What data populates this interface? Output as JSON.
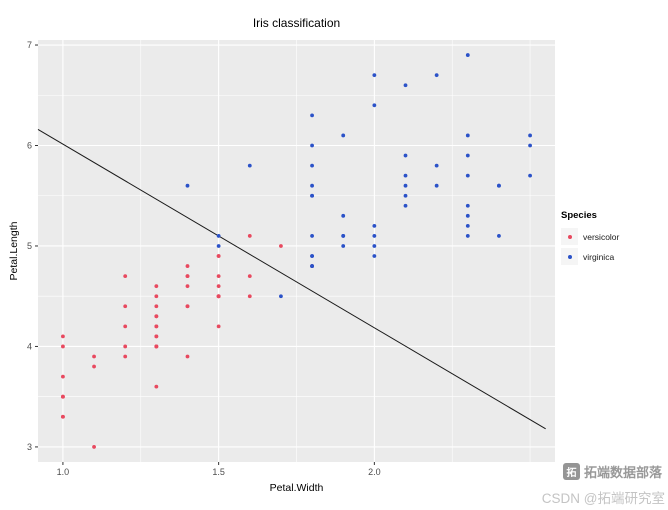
{
  "legend": {
    "title": "Species"
  },
  "watermark": {
    "logo_glyph": "拓",
    "line1": "拓端数据部落",
    "line2": "CSDN @拓端研究室"
  },
  "chart_data": {
    "type": "scatter",
    "title": "Iris classification",
    "xlabel": "Petal.Width",
    "ylabel": "Petal.Length",
    "xlim": [
      0.92,
      2.58
    ],
    "ylim": [
      2.85,
      7.05
    ],
    "panel_bg": "#EBEBEB",
    "grid_color": "#FFFFFF",
    "tick_color": "#333333",
    "x_ticks": [
      {
        "value": 1.0,
        "label": "1.0"
      },
      {
        "value": 1.5,
        "label": "1.5"
      },
      {
        "value": 2.0,
        "label": "2.0"
      }
    ],
    "y_ticks": [
      {
        "value": 3,
        "label": "3"
      },
      {
        "value": 4,
        "label": "4"
      },
      {
        "value": 5,
        "label": "5"
      },
      {
        "value": 6,
        "label": "6"
      },
      {
        "value": 7,
        "label": "7"
      }
    ],
    "x_minor": [
      1.25,
      1.75,
      2.25,
      2.5
    ],
    "y_minor": [
      3.5,
      4.5,
      5.5,
      6.5
    ],
    "decision_boundary": {
      "x1": 0.92,
      "y1": 6.16,
      "x2": 2.55,
      "y2": 3.18,
      "color": "#1A1A1A"
    },
    "series": [
      {
        "name": "versicolor",
        "color": "#E8495F",
        "points": [
          [
            1.4,
            4.7
          ],
          [
            1.5,
            4.5
          ],
          [
            1.5,
            4.9
          ],
          [
            1.3,
            4.0
          ],
          [
            1.5,
            4.6
          ],
          [
            1.3,
            4.5
          ],
          [
            1.6,
            4.7
          ],
          [
            1.0,
            3.3
          ],
          [
            1.3,
            4.6
          ],
          [
            1.4,
            3.9
          ],
          [
            1.0,
            3.5
          ],
          [
            1.5,
            4.2
          ],
          [
            1.0,
            4.0
          ],
          [
            1.4,
            4.7
          ],
          [
            1.3,
            3.6
          ],
          [
            1.4,
            4.4
          ],
          [
            1.5,
            4.5
          ],
          [
            1.0,
            4.1
          ],
          [
            1.5,
            4.5
          ],
          [
            1.1,
            3.9
          ],
          [
            1.8,
            4.8
          ],
          [
            1.3,
            4.0
          ],
          [
            1.5,
            4.9
          ],
          [
            1.2,
            4.7
          ],
          [
            1.3,
            4.3
          ],
          [
            1.4,
            4.4
          ],
          [
            1.4,
            4.8
          ],
          [
            1.7,
            5.0
          ],
          [
            1.5,
            4.5
          ],
          [
            1.0,
            3.5
          ],
          [
            1.1,
            3.8
          ],
          [
            1.0,
            3.7
          ],
          [
            1.2,
            3.9
          ],
          [
            1.6,
            5.1
          ],
          [
            1.5,
            4.5
          ],
          [
            1.6,
            4.5
          ],
          [
            1.5,
            4.7
          ],
          [
            1.3,
            4.4
          ],
          [
            1.3,
            4.1
          ],
          [
            1.3,
            4.0
          ],
          [
            1.2,
            4.4
          ],
          [
            1.4,
            4.6
          ],
          [
            1.2,
            4.0
          ],
          [
            1.0,
            3.3
          ],
          [
            1.3,
            4.2
          ],
          [
            1.2,
            4.2
          ],
          [
            1.3,
            4.2
          ],
          [
            1.3,
            4.3
          ],
          [
            1.1,
            3.0
          ],
          [
            1.3,
            4.1
          ]
        ]
      },
      {
        "name": "virginica",
        "color": "#2B52C8",
        "points": [
          [
            2.5,
            6.0
          ],
          [
            1.9,
            5.1
          ],
          [
            2.1,
            5.9
          ],
          [
            1.8,
            5.6
          ],
          [
            2.2,
            5.8
          ],
          [
            2.1,
            6.6
          ],
          [
            1.7,
            4.5
          ],
          [
            1.8,
            6.3
          ],
          [
            1.8,
            5.8
          ],
          [
            2.5,
            6.1
          ],
          [
            2.0,
            5.1
          ],
          [
            1.9,
            5.3
          ],
          [
            2.1,
            5.5
          ],
          [
            2.0,
            5.0
          ],
          [
            2.4,
            5.1
          ],
          [
            2.3,
            5.3
          ],
          [
            1.8,
            5.5
          ],
          [
            2.2,
            6.7
          ],
          [
            2.3,
            6.9
          ],
          [
            1.5,
            5.0
          ],
          [
            2.3,
            5.7
          ],
          [
            2.0,
            4.9
          ],
          [
            2.0,
            6.7
          ],
          [
            1.8,
            4.9
          ],
          [
            2.1,
            5.7
          ],
          [
            1.8,
            6.0
          ],
          [
            1.8,
            4.8
          ],
          [
            1.8,
            4.9
          ],
          [
            2.1,
            5.6
          ],
          [
            1.6,
            5.8
          ],
          [
            1.9,
            6.1
          ],
          [
            2.0,
            6.4
          ],
          [
            2.2,
            5.6
          ],
          [
            1.5,
            5.1
          ],
          [
            1.4,
            5.6
          ],
          [
            2.3,
            6.1
          ],
          [
            2.4,
            5.6
          ],
          [
            1.8,
            5.5
          ],
          [
            1.8,
            4.8
          ],
          [
            2.1,
            5.4
          ],
          [
            2.4,
            5.6
          ],
          [
            2.3,
            5.1
          ],
          [
            1.9,
            5.1
          ],
          [
            2.3,
            5.9
          ],
          [
            2.5,
            5.7
          ],
          [
            2.3,
            5.2
          ],
          [
            1.9,
            5.0
          ],
          [
            2.0,
            5.2
          ],
          [
            2.3,
            5.4
          ],
          [
            1.8,
            5.1
          ]
        ]
      }
    ]
  }
}
